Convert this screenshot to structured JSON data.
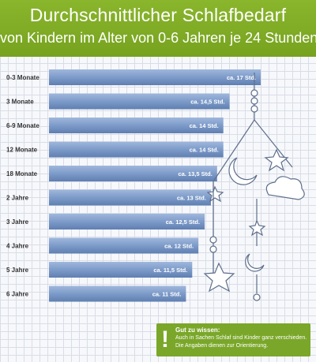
{
  "header": {
    "title": "Durchschnittlicher Schlafbedarf",
    "subtitle": "von Kindern im Alter von 0-6 Jahren je 24 Stunden"
  },
  "chart_data": {
    "type": "bar",
    "orientation": "horizontal",
    "categories": [
      "0-3 Monate",
      "3 Monate",
      "6-9 Monate",
      "12 Monate",
      "18 Monate",
      "2 Jahre",
      "3 Jahre",
      "4 Jahre",
      "5 Jahre",
      "6 Jahre"
    ],
    "values": [
      17,
      14.5,
      14,
      14,
      13.5,
      13,
      12.5,
      12,
      11.5,
      11
    ],
    "value_labels": [
      "ca. 17 Std.",
      "ca. 14,5 Std.",
      "ca. 14 Std.",
      "ca. 14 Std.",
      "ca. 13,5 Std.",
      "ca. 13 Std.",
      "ca. 12,5 Std.",
      "ca. 12 Std.",
      "ca. 11,5 Std.",
      "ca. 11 Std."
    ],
    "bar_color": "#7b9bc8",
    "grid": true
  },
  "note": {
    "icon": "exclamation-icon",
    "mark": "!",
    "heading": "Gut zu wissen:",
    "text": "Auch in Sachen Schlaf sind Kinder ganz verschieden. Die Angaben dienen zur Orientierung."
  }
}
